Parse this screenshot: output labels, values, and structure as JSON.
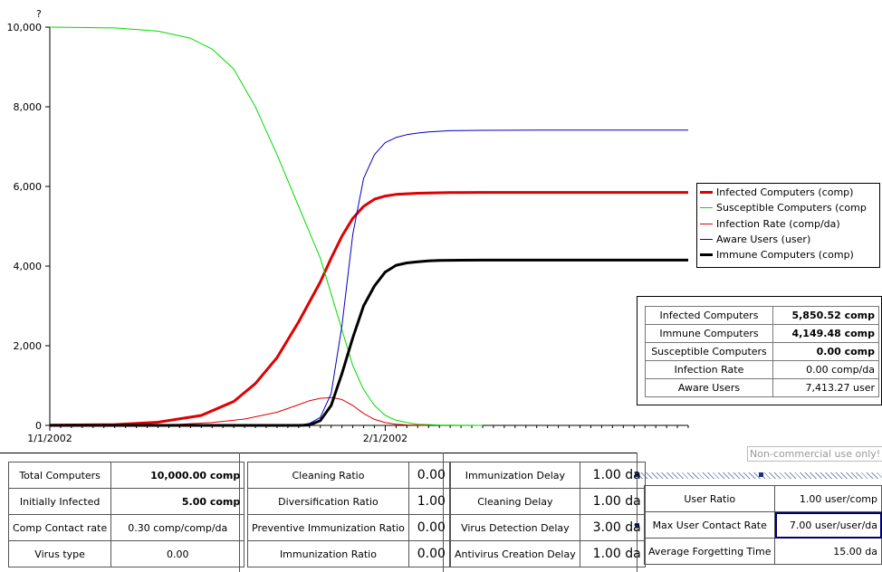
{
  "chart_data": {
    "type": "line",
    "corner_label": "?",
    "y_ticks": [
      "10,000",
      "8,000",
      "6,000",
      "4,000",
      "2,000",
      "0"
    ],
    "ylim": [
      0,
      10000
    ],
    "x_tick_labels": [
      "1/1/2002",
      "2/1/2002"
    ],
    "x_tick_days": [
      0,
      31
    ],
    "xlim": [
      0,
      59
    ],
    "series": [
      {
        "name": "Infected Computers (comp)",
        "color": "#e00000",
        "width": 3,
        "x": [
          0,
          6,
          10,
          14,
          17,
          19,
          21,
          23,
          25,
          26,
          27,
          28,
          29,
          30,
          31,
          32,
          34,
          37,
          40,
          45,
          50,
          59
        ],
        "y": [
          5,
          20,
          80,
          250,
          600,
          1050,
          1700,
          2600,
          3600,
          4200,
          4750,
          5200,
          5500,
          5680,
          5760,
          5800,
          5830,
          5845,
          5850,
          5850,
          5850,
          5850
        ]
      },
      {
        "name": "Susceptible Computers (comp",
        "color": "#00dd00",
        "width": 1,
        "x": [
          0,
          6,
          10,
          13,
          15,
          17,
          19,
          21,
          23,
          25,
          26,
          27,
          28,
          29,
          30,
          31,
          32,
          33,
          34,
          36,
          38,
          40
        ],
        "y": [
          10000,
          9980,
          9900,
          9720,
          9450,
          8950,
          8000,
          6800,
          5500,
          4200,
          3300,
          2400,
          1500,
          900,
          500,
          250,
          130,
          70,
          30,
          10,
          3,
          0
        ]
      },
      {
        "name": "Infection Rate (comp/da)",
        "color": "#e00000",
        "width": 1,
        "x": [
          0,
          8,
          12,
          15,
          18,
          21,
          23,
          24,
          25,
          26,
          27,
          28,
          29,
          30,
          31,
          32,
          33,
          34,
          35
        ],
        "y": [
          0,
          10,
          30,
          70,
          160,
          330,
          520,
          620,
          680,
          700,
          650,
          500,
          300,
          150,
          70,
          30,
          12,
          5,
          0
        ]
      },
      {
        "name": "Aware Users (user)",
        "color": "#0000c0",
        "width": 1,
        "x": [
          0,
          20,
          23,
          24,
          25,
          26,
          27,
          28,
          29,
          30,
          31,
          32,
          33,
          34,
          35,
          37,
          40,
          45,
          50,
          59
        ],
        "y": [
          0,
          0,
          0,
          50,
          200,
          800,
          2500,
          4800,
          6200,
          6800,
          7100,
          7230,
          7300,
          7340,
          7370,
          7400,
          7410,
          7413,
          7413,
          7413
        ]
      },
      {
        "name": "Immune Computers (comp)",
        "color": "#000000",
        "width": 3,
        "x": [
          0,
          23,
          24,
          25,
          26,
          27,
          28,
          29,
          30,
          31,
          32,
          33,
          34,
          35,
          36,
          38,
          40,
          45,
          50,
          59
        ],
        "y": [
          0,
          0,
          10,
          120,
          500,
          1300,
          2200,
          3000,
          3500,
          3850,
          4020,
          4080,
          4110,
          4130,
          4140,
          4147,
          4149,
          4149,
          4149,
          4149
        ]
      }
    ]
  },
  "results": {
    "rows": [
      {
        "name": "Infected Computers",
        "value": "5,850.52 comp",
        "bold": true
      },
      {
        "name": "Immune Computers",
        "value": "4,149.48 comp",
        "bold": true
      },
      {
        "name": "Susceptible Computers",
        "value": "0.00 comp",
        "bold": true
      },
      {
        "name": "Infection Rate",
        "value": "0.00 comp/da",
        "bold": false
      },
      {
        "name": "Aware Users",
        "value": "7,413.27 user",
        "bold": false
      }
    ]
  },
  "watermark": "Non-commercial use only!",
  "panels": {
    "p1": [
      {
        "label": "Total Computers",
        "value": "10,000.00 comp"
      },
      {
        "label": "Initially Infected",
        "value": "5.00 comp"
      },
      {
        "label": "Comp Contact rate",
        "value": "0.30 comp/comp/da"
      },
      {
        "label": "Virus type",
        "value": "0.00"
      }
    ],
    "p2": [
      {
        "label": "Cleaning Ratio",
        "value": "0.00"
      },
      {
        "label": "Diversification Ratio",
        "value": "1.00"
      },
      {
        "label": "Preventive Immunization Ratio",
        "value": "0.00"
      },
      {
        "label": "Immunization Ratio",
        "value": "0.00"
      }
    ],
    "p3": [
      {
        "label": "Immunization Delay",
        "value": "1.00 da"
      },
      {
        "label": "Cleaning Delay",
        "value": "1.00 da"
      },
      {
        "label": "Virus Detection Delay",
        "value": "3.00 da"
      },
      {
        "label": "Antivirus Creation Delay",
        "value": "1.00 da"
      }
    ],
    "p4": [
      {
        "label": "User Ratio",
        "value": "1.00 user/comp"
      },
      {
        "label": "Max User Contact Rate",
        "value": "7.00 user/user/da"
      },
      {
        "label": "Average Forgetting Time",
        "value": "15.00 da"
      }
    ]
  }
}
